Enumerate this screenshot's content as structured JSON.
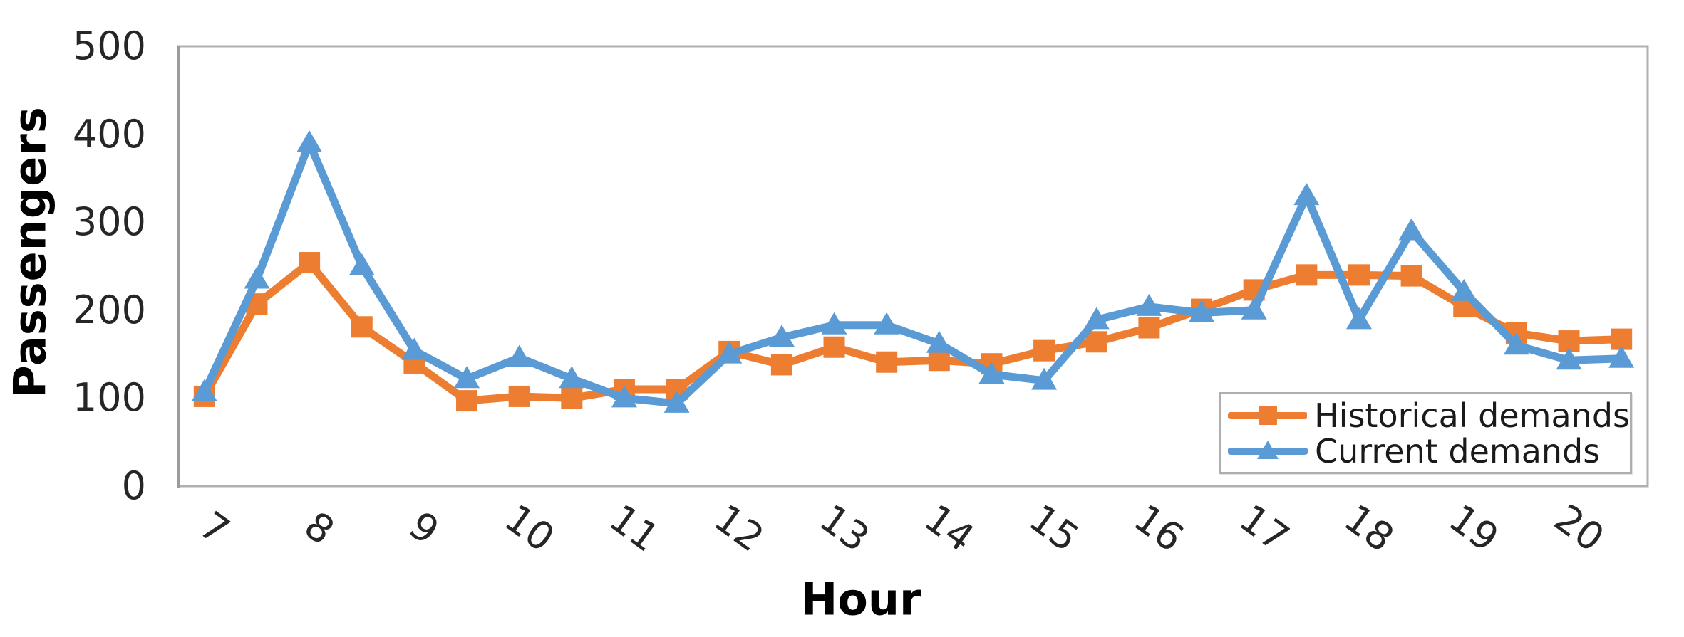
{
  "chart_data": {
    "type": "line",
    "title": "",
    "xlabel": "Hour",
    "ylabel": "Passengers",
    "x": [
      7,
      7.5,
      8,
      8.5,
      9,
      9.5,
      10,
      10.5,
      11,
      11.5,
      12,
      12.5,
      13,
      13.5,
      14,
      14.5,
      15,
      15.5,
      16,
      16.5,
      17,
      17.5,
      18,
      18.5,
      19,
      19.5,
      20,
      20.5
    ],
    "xticks": [
      7,
      8,
      9,
      10,
      11,
      12,
      13,
      14,
      15,
      16,
      17,
      18,
      19,
      20
    ],
    "yticks": [
      0,
      100,
      200,
      300,
      400,
      500
    ],
    "ylim": [
      0,
      500
    ],
    "grid": false,
    "legend_position": "inside-bottom-right",
    "series": [
      {
        "name": "Historical demands",
        "color": "#ED7D31",
        "marker": "square",
        "values": [
          102,
          207,
          254,
          181,
          140,
          97,
          102,
          100,
          110,
          110,
          153,
          138,
          158,
          141,
          143,
          139,
          154,
          164,
          180,
          201,
          223,
          240,
          240,
          239,
          204,
          174,
          165,
          167
        ]
      },
      {
        "name": "Current demands",
        "color": "#5B9BD5",
        "marker": "triangle-up",
        "values": [
          107,
          235,
          390,
          250,
          154,
          122,
          146,
          122,
          100,
          94,
          150,
          169,
          183,
          183,
          162,
          127,
          120,
          189,
          204,
          197,
          200,
          330,
          189,
          290,
          221,
          160,
          143,
          145
        ]
      }
    ]
  },
  "colors": {
    "plot_border": "#b0b0b0",
    "axis_line": "#9b9b9b",
    "tick_text": "#262626",
    "title_text": "#000000",
    "background": "#ffffff"
  }
}
